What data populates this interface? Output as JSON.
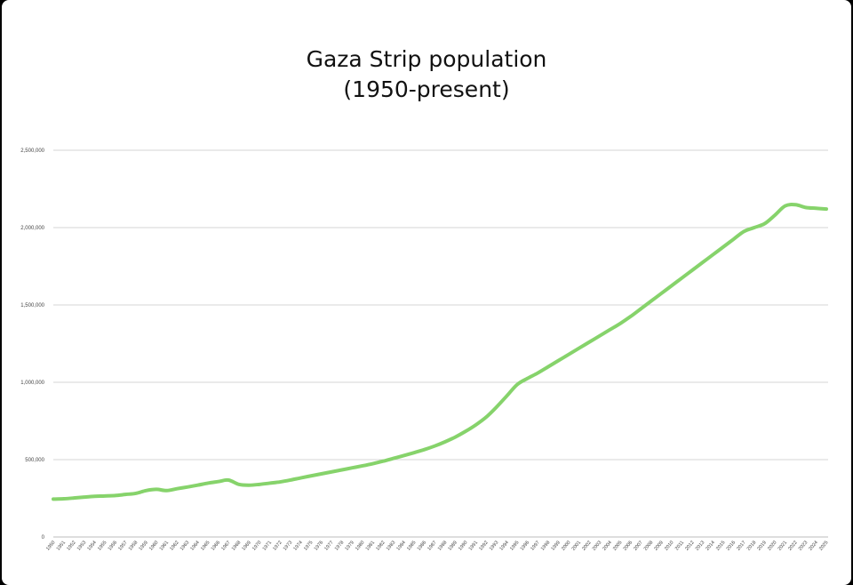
{
  "chart_data": {
    "type": "line",
    "title_line1": "Gaza Strip population",
    "title_line2": "(1950-present)",
    "xlabel": "",
    "ylabel": "",
    "ylim": [
      0,
      2500000
    ],
    "yticks": [
      0,
      500000,
      1000000,
      1500000,
      2000000,
      2500000
    ],
    "ytick_labels": [
      "0",
      "500,000",
      "1,000,000",
      "1,500,000",
      "2,000,000",
      "2,500,000"
    ],
    "grid": true,
    "legend": "none",
    "line_color": "#86d36b",
    "x": [
      1950,
      1951,
      1952,
      1953,
      1954,
      1955,
      1956,
      1957,
      1958,
      1959,
      1960,
      1961,
      1962,
      1963,
      1964,
      1965,
      1966,
      1967,
      1968,
      1969,
      1970,
      1971,
      1972,
      1973,
      1974,
      1975,
      1976,
      1977,
      1978,
      1979,
      1980,
      1981,
      1982,
      1983,
      1984,
      1985,
      1986,
      1987,
      1988,
      1989,
      1990,
      1991,
      1992,
      1993,
      1994,
      1995,
      1996,
      1997,
      1998,
      1999,
      2000,
      2001,
      2002,
      2003,
      2004,
      2005,
      2006,
      2007,
      2008,
      2009,
      2010,
      2011,
      2012,
      2013,
      2014,
      2015,
      2016,
      2017,
      2018,
      2019,
      2020,
      2021,
      2022,
      2023,
      2024,
      2025
    ],
    "series": [
      {
        "values": [
          245000,
          247000,
          252000,
          258000,
          263000,
          265000,
          268000,
          275000,
          282000,
          300000,
          308000,
          300000,
          312000,
          323000,
          335000,
          348000,
          358000,
          368000,
          340000,
          335000,
          340000,
          348000,
          356000,
          368000,
          382000,
          395000,
          408000,
          421000,
          434000,
          447000,
          460000,
          474000,
          490000,
          508000,
          526000,
          545000,
          565000,
          588000,
          615000,
          646000,
          683000,
          725000,
          775000,
          840000,
          912000,
          985000,
          1025000,
          1060000,
          1100000,
          1140000,
          1180000,
          1220000,
          1260000,
          1300000,
          1340000,
          1380000,
          1425000,
          1475000,
          1525000,
          1575000,
          1625000,
          1675000,
          1725000,
          1775000,
          1825000,
          1875000,
          1925000,
          1975000,
          2000000,
          2025000,
          2080000,
          2140000,
          2148000,
          2130000,
          2125000,
          2120000
        ]
      }
    ]
  }
}
